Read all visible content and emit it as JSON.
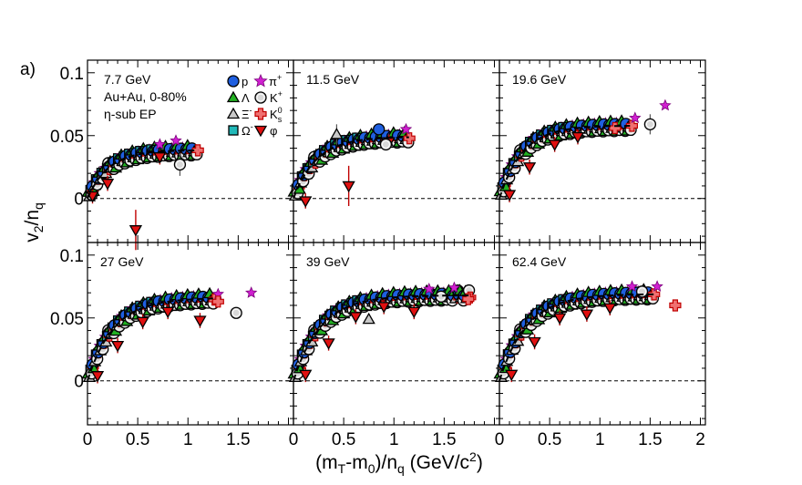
{
  "figure": {
    "panel_tag": "a)",
    "ylabel_main": "v",
    "ylabel_sub1": "2",
    "ylabel_slash": "/n",
    "ylabel_sub2": "q",
    "xlabel_pre": "(m",
    "xlabel_sub1": "T",
    "xlabel_mid": "-m",
    "xlabel_sub2": "0",
    "xlabel_mid2": ")/n",
    "xlabel_sub3": "q",
    "xlabel_post": " (GeV/c",
    "xlabel_sup": "2",
    "xlabel_end": ")",
    "system": "Au+Au,  0-80%",
    "method": "η-sub EP"
  },
  "legend": {
    "p": "p",
    "lambda": "Λ",
    "xi": "Ξ",
    "xi_sup": "-",
    "omega": "Ω",
    "omega_sup": "-",
    "pi": "π",
    "pi_sup": "+",
    "k": "K",
    "k_sup": "+",
    "ks": "K",
    "ks_sub": "s",
    "ks_sup": "0",
    "phi": "φ"
  },
  "colors": {
    "p": "#1f5fe0",
    "lambda": "#22b022",
    "xi": "#c8c8c8",
    "omega": "#20b8b8",
    "pi": "#d020d0",
    "k": "#d8d8d8",
    "ks": "#f07070",
    "phi": "#e01010"
  },
  "chart_data": {
    "type": "scatter",
    "xlim": [
      0,
      2.05
    ],
    "ylim": [
      -0.035,
      0.11
    ],
    "x_ticks": [
      0,
      0.5,
      1,
      1.5,
      2
    ],
    "x_tick_labels": [
      "0",
      "0.5",
      "1",
      "1.5",
      "2"
    ],
    "y_ticks": [
      0,
      0.05,
      0.1
    ],
    "y_tick_labels": [
      "0",
      "0.05",
      "0.1"
    ],
    "panels": [
      {
        "energy": "7.7 GeV",
        "fit_end": 1.1,
        "fit_params": [
          0.0385,
          0.21
        ],
        "phi_points": [
          [
            0.05,
            0.002
          ],
          [
            0.2,
            0.012
          ],
          [
            0.48,
            -0.025
          ],
          [
            0.72,
            0.033
          ]
        ],
        "outliers": [
          {
            "s": "k",
            "x": 0.92,
            "y": 0.027,
            "err": 0.009
          },
          {
            "s": "pi",
            "x": 0.88,
            "y": 0.046,
            "err": 0.0
          },
          {
            "s": "pi",
            "x": 0.72,
            "y": 0.043,
            "err": 0.0
          }
        ]
      },
      {
        "energy": "11.5 GeV",
        "fit_end": 1.15,
        "fit_params": [
          0.049,
          0.23
        ],
        "phi_points": [
          [
            0.12,
            -0.002
          ],
          [
            0.55,
            0.01
          ],
          [
            0.95,
            0.045
          ]
        ],
        "outliers": [
          {
            "s": "pi",
            "x": 1.12,
            "y": 0.055,
            "err": 0.0
          },
          {
            "s": "k",
            "x": 0.92,
            "y": 0.043,
            "err": 0.004
          },
          {
            "s": "xi",
            "x": 0.43,
            "y": 0.051,
            "err": 0.008
          },
          {
            "s": "p",
            "x": 0.85,
            "y": 0.055,
            "err": 0.0
          }
        ]
      },
      {
        "energy": "19.6 GeV",
        "fit_end": 1.3,
        "fit_params": [
          0.058,
          0.23
        ],
        "phi_points": [
          [
            0.1,
            0.003
          ],
          [
            0.3,
            0.025
          ],
          [
            0.55,
            0.043
          ],
          [
            0.78,
            0.049
          ]
        ],
        "outliers": [
          {
            "s": "pi",
            "x": 1.65,
            "y": 0.074,
            "err": 0.0
          },
          {
            "s": "pi",
            "x": 1.35,
            "y": 0.064,
            "err": 0.0
          },
          {
            "s": "k",
            "x": 1.5,
            "y": 0.059,
            "err": 0.008
          },
          {
            "s": "ks",
            "x": 1.15,
            "y": 0.056,
            "err": 0.003
          }
        ]
      },
      {
        "energy": "27 GeV",
        "fit_end": 1.25,
        "fit_params": [
          0.066,
          0.26
        ],
        "phi_points": [
          [
            0.1,
            0.004
          ],
          [
            0.3,
            0.028
          ],
          [
            0.55,
            0.047
          ],
          [
            0.8,
            0.055
          ],
          [
            1.12,
            0.048
          ]
        ],
        "outliers": [
          {
            "s": "pi",
            "x": 1.63,
            "y": 0.07,
            "err": 0.0
          },
          {
            "s": "pi",
            "x": 1.3,
            "y": 0.069,
            "err": 0.0
          },
          {
            "s": "k",
            "x": 1.48,
            "y": 0.054,
            "err": 0.004
          },
          {
            "s": "ks",
            "x": 1.3,
            "y": 0.063,
            "err": 0.003
          }
        ]
      },
      {
        "energy": "39 GeV",
        "fit_end": 1.75,
        "fit_params": [
          0.068,
          0.27
        ],
        "phi_points": [
          [
            0.12,
            0.005
          ],
          [
            0.35,
            0.03
          ],
          [
            0.62,
            0.051
          ],
          [
            0.9,
            0.059
          ],
          [
            1.2,
            0.055
          ]
        ],
        "outliers": [
          {
            "s": "pi",
            "x": 1.6,
            "y": 0.074,
            "err": 0.0
          },
          {
            "s": "pi",
            "x": 1.35,
            "y": 0.073,
            "err": 0.0
          },
          {
            "s": "k",
            "x": 1.47,
            "y": 0.067,
            "err": 0.0
          },
          {
            "s": "ks",
            "x": 1.74,
            "y": 0.065,
            "err": 0.004
          },
          {
            "s": "xi",
            "x": 0.75,
            "y": 0.049,
            "err": 0.0
          }
        ]
      },
      {
        "energy": "62.4 GeV",
        "fit_end": 1.55,
        "fit_params": [
          0.069,
          0.27
        ],
        "phi_points": [
          [
            0.12,
            0.005
          ],
          [
            0.35,
            0.031
          ],
          [
            0.6,
            0.05
          ],
          [
            0.87,
            0.053
          ],
          [
            1.1,
            0.058
          ]
        ],
        "outliers": [
          {
            "s": "pi",
            "x": 1.57,
            "y": 0.075,
            "err": 0.0
          },
          {
            "s": "pi",
            "x": 1.32,
            "y": 0.075,
            "err": 0.0
          },
          {
            "s": "k",
            "x": 1.42,
            "y": 0.071,
            "err": 0.0
          },
          {
            "s": "ks",
            "x": 1.75,
            "y": 0.06,
            "err": 0.004
          }
        ]
      }
    ]
  }
}
